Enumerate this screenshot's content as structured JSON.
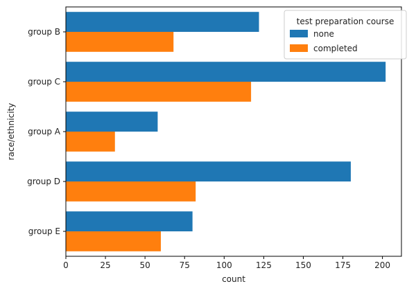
{
  "chart_data": {
    "type": "bar",
    "orientation": "horizontal",
    "title": "",
    "xlabel": "count",
    "ylabel": "race/ethnicity",
    "categories": [
      "group B",
      "group C",
      "group A",
      "group D",
      "group E"
    ],
    "series": [
      {
        "name": "none",
        "values": [
          122,
          202,
          58,
          180,
          80
        ],
        "color": "#1f77b4"
      },
      {
        "name": "completed",
        "values": [
          68,
          117,
          31,
          82,
          60
        ],
        "color": "#ff7f0e"
      }
    ],
    "xlim": [
      0,
      212
    ],
    "xticks": [
      0,
      25,
      50,
      75,
      100,
      125,
      150,
      175,
      200
    ],
    "grid": false,
    "legend": {
      "title": "test preparation course",
      "placement": "top-right"
    }
  }
}
